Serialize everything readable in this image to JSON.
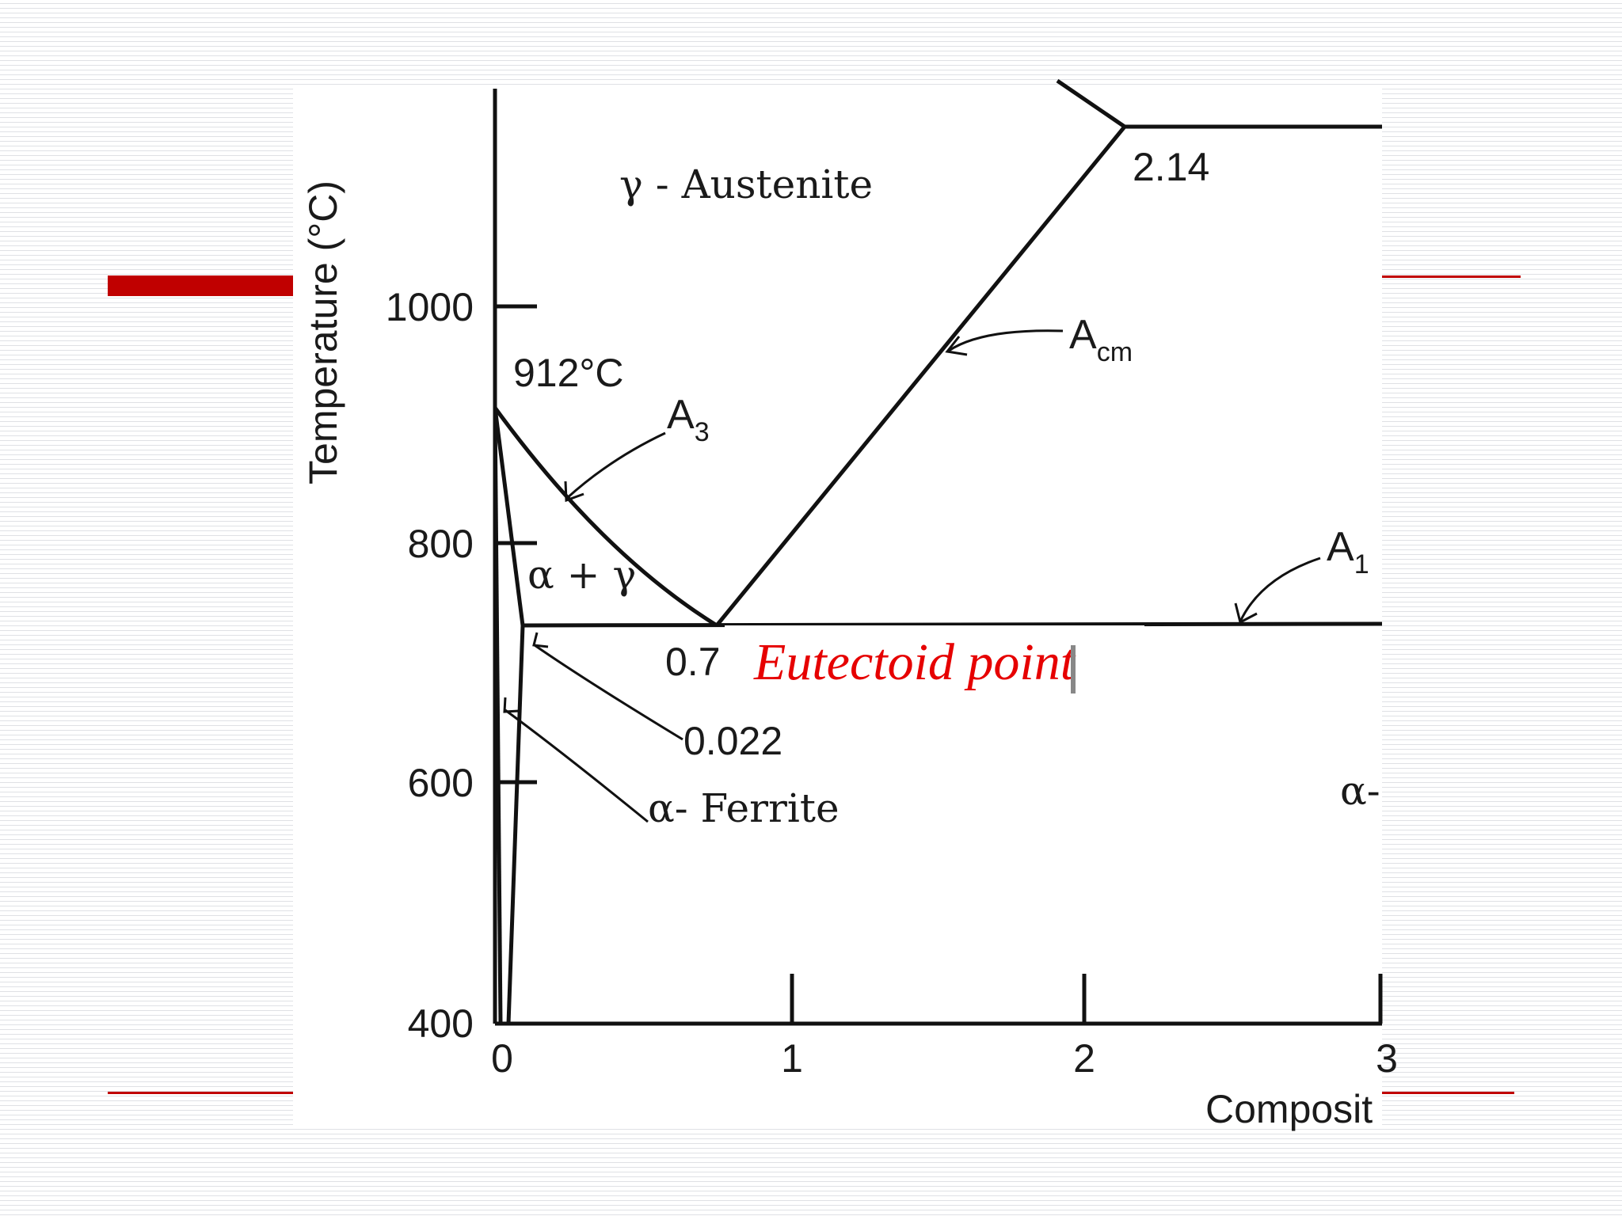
{
  "slide": {
    "accent_color": "#c00000",
    "annotation_color": "#e60000"
  },
  "diagram": {
    "y_axis_label": "Temperature (°C)",
    "x_axis_label_partial": "Composit",
    "y_ticks": [
      "1000",
      "800",
      "600",
      "400"
    ],
    "x_ticks": [
      "0",
      "1",
      "2",
      "3"
    ],
    "regions": {
      "austenite": "γ - Austenite",
      "alpha_gamma": "α + γ",
      "alpha_partial": "α-"
    },
    "points": {
      "temp_912": "912°C",
      "carbon_214": "2.14",
      "carbon_07": "0.7",
      "carbon_0022": "0.022"
    },
    "callouts": {
      "a3_main": "A",
      "a3_sub": "3",
      "acm_main": "A",
      "acm_sub": "cm",
      "a1_main": "A",
      "a1_sub": "1",
      "ferrite": "α- Ferrite"
    },
    "annotation": "Eutectoid point"
  }
}
